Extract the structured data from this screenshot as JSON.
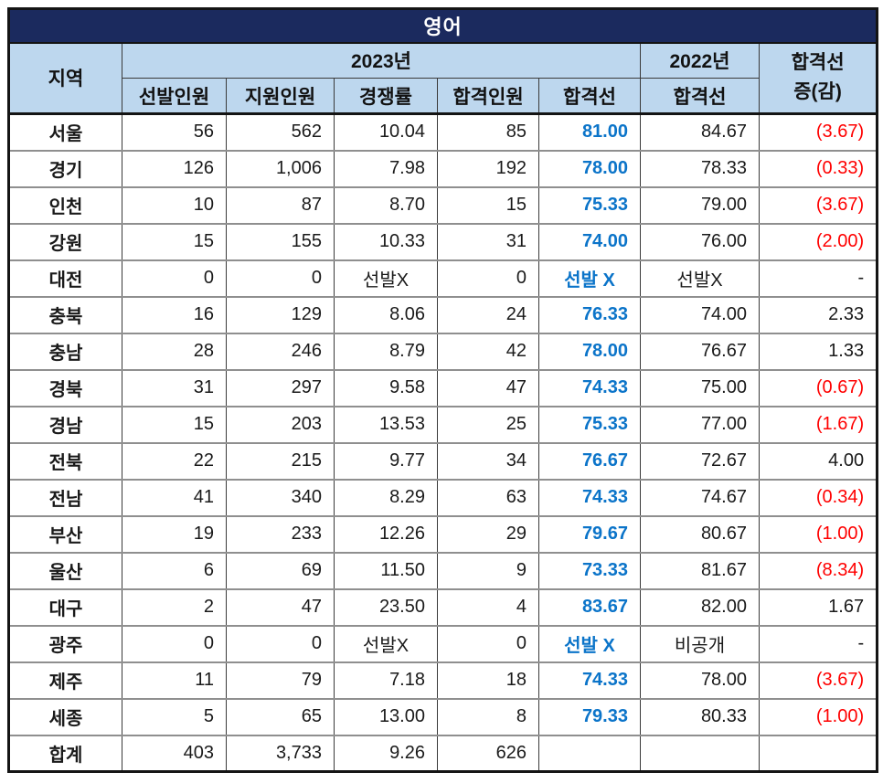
{
  "title": "영어",
  "colors": {
    "title_bg": "#1b2a5e",
    "title_text": "#ffffff",
    "header_bg": "#bdd7ee",
    "cutoff_2023_text": "#0b74c9",
    "negative_text": "#ff0000",
    "body_text": "#1a1a1a",
    "grid_h": "#8f8f8f",
    "grid_v": "#3a3a3a"
  },
  "table": {
    "header": {
      "region": "지역",
      "group_2023": "2023년",
      "group_2022": "2022년",
      "sub_selected": "선발인원",
      "sub_applicants": "지원인원",
      "sub_ratio": "경쟁률",
      "sub_passed": "합격인원",
      "sub_cutoff": "합격선",
      "cutoff_2022": "합격선",
      "diff_line1": "합격선",
      "diff_line2": "증(감)"
    },
    "rows": [
      {
        "cells": [
          "서울",
          "56",
          "562",
          "10.04",
          "85",
          "81.00",
          "84.67",
          "(3.67)"
        ]
      },
      {
        "cells": [
          "경기",
          "126",
          "1,006",
          "7.98",
          "192",
          "78.00",
          "78.33",
          "(0.33)"
        ]
      },
      {
        "cells": [
          "인천",
          "10",
          "87",
          "8.70",
          "15",
          "75.33",
          "79.00",
          "(3.67)"
        ]
      },
      {
        "cells": [
          "강원",
          "15",
          "155",
          "10.33",
          "31",
          "74.00",
          "76.00",
          "(2.00)"
        ]
      },
      {
        "cells": [
          "대전",
          "0",
          "0",
          "선발X",
          "0",
          "선발 X",
          "선발X",
          "-"
        ]
      },
      {
        "cells": [
          "충북",
          "16",
          "129",
          "8.06",
          "24",
          "76.33",
          "74.00",
          "2.33"
        ]
      },
      {
        "cells": [
          "충남",
          "28",
          "246",
          "8.79",
          "42",
          "78.00",
          "76.67",
          "1.33"
        ]
      },
      {
        "cells": [
          "경북",
          "31",
          "297",
          "9.58",
          "47",
          "74.33",
          "75.00",
          "(0.67)"
        ]
      },
      {
        "cells": [
          "경남",
          "15",
          "203",
          "13.53",
          "25",
          "75.33",
          "77.00",
          "(1.67)"
        ]
      },
      {
        "cells": [
          "전북",
          "22",
          "215",
          "9.77",
          "34",
          "76.67",
          "72.67",
          "4.00"
        ]
      },
      {
        "cells": [
          "전남",
          "41",
          "340",
          "8.29",
          "63",
          "74.33",
          "74.67",
          "(0.34)"
        ]
      },
      {
        "cells": [
          "부산",
          "19",
          "233",
          "12.26",
          "29",
          "79.67",
          "80.67",
          "(1.00)"
        ]
      },
      {
        "cells": [
          "울산",
          "6",
          "69",
          "11.50",
          "9",
          "73.33",
          "81.67",
          "(8.34)"
        ]
      },
      {
        "cells": [
          "대구",
          "2",
          "47",
          "23.50",
          "4",
          "83.67",
          "82.00",
          "1.67"
        ]
      },
      {
        "cells": [
          "광주",
          "0",
          "0",
          "선발X",
          "0",
          "선발 X",
          "비공개",
          "-"
        ]
      },
      {
        "cells": [
          "제주",
          "11",
          "79",
          "7.18",
          "18",
          "74.33",
          "78.00",
          "(3.67)"
        ]
      },
      {
        "cells": [
          "세종",
          "5",
          "65",
          "13.00",
          "8",
          "79.33",
          "80.33",
          "(1.00)"
        ]
      },
      {
        "cells": [
          "합계",
          "403",
          "3,733",
          "9.26",
          "626",
          "",
          "",
          ""
        ],
        "is_total": true
      }
    ]
  }
}
